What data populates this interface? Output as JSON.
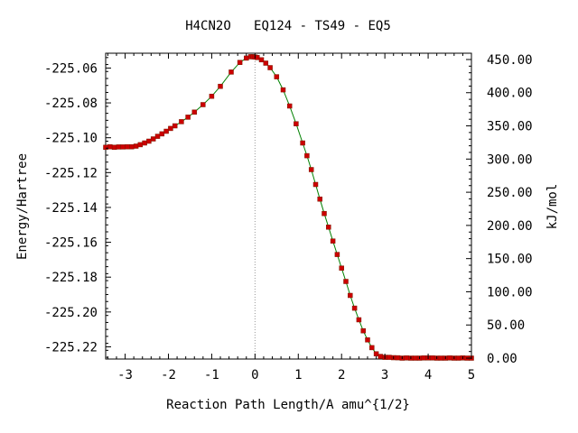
{
  "chart_data": {
    "type": "line",
    "title": "H4CN2O   EQ124 - TS49 - EQ5",
    "xlabel": "Reaction Path Length/A amu^{1/2}",
    "ylabel": "Energy/Hartree",
    "y2label": "kJ/mol",
    "xlim": [
      -3.45,
      5.0
    ],
    "ylim": [
      -225.227,
      -225.0515
    ],
    "x_ticks": [
      "-3",
      "-2",
      "-1",
      "0",
      "1",
      "2",
      "3",
      "4",
      "5"
    ],
    "y_ticks": [
      "-225.06",
      "-225.08",
      "-225.10",
      "-225.12",
      "-225.14",
      "-225.16",
      "-225.18",
      "-225.20",
      "-225.22"
    ],
    "y2_ticks": [
      "450.00",
      "400.00",
      "350.00",
      "300.00",
      "250.00",
      "200.00",
      "150.00",
      "100.00",
      "50.00",
      "0.00"
    ],
    "y2_reference": {
      "energy_at_zero": -225.2265,
      "kj_per_hartree": 2625.5
    },
    "grid": false,
    "ts_marker_x": 0.0,
    "colors": {
      "line": "#008000",
      "points": "#cc0000",
      "ts_line": "#999999"
    },
    "series": [
      {
        "x": [
          -3.45,
          -3.35,
          -3.25,
          -3.15,
          -3.05,
          -2.95,
          -2.85,
          -2.75,
          -2.65,
          -2.55,
          -2.45,
          -2.35,
          -2.25,
          -2.15,
          -2.05,
          -1.95,
          -1.85,
          -1.7,
          -1.55,
          -1.4,
          -1.2,
          -1.0,
          -0.8,
          -0.55,
          -0.35,
          -0.2,
          -0.1,
          -0.05,
          0.0,
          0.05,
          0.15,
          0.25,
          0.35,
          0.5,
          0.65,
          0.8,
          0.95,
          1.1,
          1.2,
          1.3,
          1.4,
          1.5,
          1.6,
          1.7,
          1.8,
          1.9,
          2.0,
          2.1,
          2.2,
          2.3,
          2.4,
          2.5,
          2.6,
          2.7,
          2.8,
          2.9,
          3.0,
          3.1,
          3.2,
          3.3,
          3.4,
          3.5,
          3.6,
          3.7,
          3.8,
          3.9,
          4.0,
          4.1,
          4.2,
          4.3,
          4.4,
          4.5,
          4.6,
          4.7,
          4.8,
          4.9,
          5.0
        ],
        "y": [
          -225.1055,
          -225.1052,
          -225.1055,
          -225.1053,
          -225.1053,
          -225.1052,
          -225.1052,
          -225.1048,
          -225.104,
          -225.103,
          -225.102,
          -225.1007,
          -225.0992,
          -225.0978,
          -225.0963,
          -225.0947,
          -225.0932,
          -225.0908,
          -225.0882,
          -225.0853,
          -225.081,
          -225.0762,
          -225.0705,
          -225.0623,
          -225.0568,
          -225.0543,
          -225.0535,
          -225.0535,
          -225.0537,
          -225.054,
          -225.0553,
          -225.0572,
          -225.0598,
          -225.065,
          -225.0725,
          -225.0818,
          -225.092,
          -225.103,
          -225.1103,
          -225.1183,
          -225.1268,
          -225.1352,
          -225.1435,
          -225.1513,
          -225.1593,
          -225.167,
          -225.1748,
          -225.1825,
          -225.1905,
          -225.1978,
          -225.2045,
          -225.2108,
          -225.216,
          -225.2205,
          -225.224,
          -225.2255,
          -225.226,
          -225.226,
          -225.2262,
          -225.2263,
          -225.2265,
          -225.2264,
          -225.2265,
          -225.2265,
          -225.2265,
          -225.2264,
          -225.2264,
          -225.2264,
          -225.2265,
          -225.2265,
          -225.2265,
          -225.2264,
          -225.2265,
          -225.2265,
          -225.2264,
          -225.2265,
          -225.2265
        ]
      }
    ]
  }
}
